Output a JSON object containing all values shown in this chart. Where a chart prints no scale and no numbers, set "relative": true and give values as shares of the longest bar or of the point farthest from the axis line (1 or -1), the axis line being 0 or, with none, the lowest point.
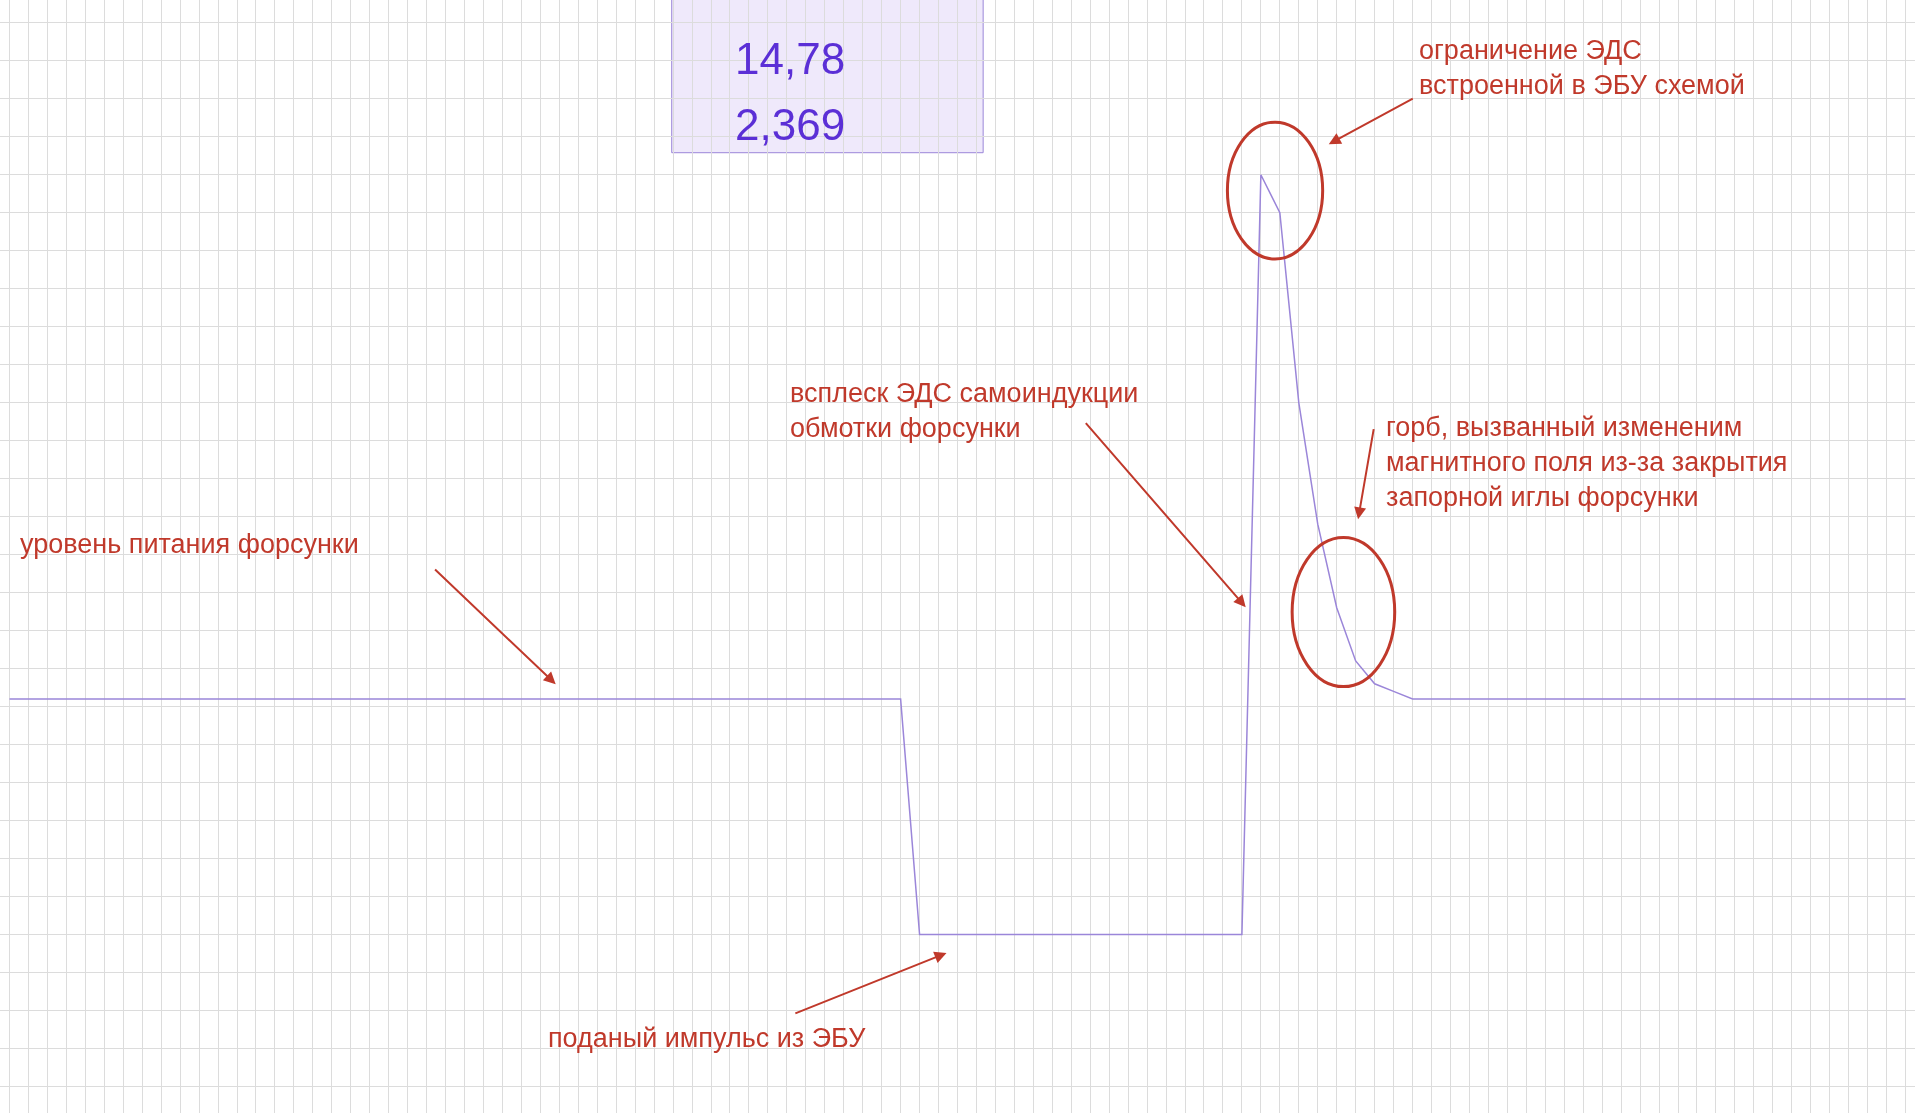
{
  "chart_data": {
    "type": "line",
    "relative": true,
    "grid": true,
    "legend": false,
    "marker": "none",
    "line_style": "solid",
    "categories": [
      null,
      null,
      null,
      null,
      null,
      null,
      null,
      null,
      null,
      null,
      null,
      null,
      null,
      null,
      null,
      null,
      null,
      null,
      null,
      null,
      null,
      null,
      null,
      null,
      null,
      null,
      null,
      null,
      null,
      null,
      null,
      null,
      null,
      null,
      null,
      null,
      null,
      null,
      null,
      null,
      null,
      null,
      null,
      null,
      null,
      null,
      null,
      null,
      null,
      null,
      null,
      null,
      null,
      null,
      null,
      null,
      null,
      null,
      null,
      null,
      null,
      null,
      null,
      null,
      null,
      null,
      null,
      null,
      null,
      null,
      null,
      null,
      null,
      null,
      null,
      null,
      null,
      null,
      null,
      null,
      null,
      null,
      null,
      null,
      null,
      null,
      null,
      null,
      null,
      null,
      null,
      null,
      null,
      null,
      null,
      null,
      null,
      null,
      null,
      null,
      null
    ],
    "series": [
      {
        "color": "#9b86d9",
        "values": [
          0.31,
          0.31,
          0.31,
          0.31,
          0.31,
          0.31,
          0.31,
          0.31,
          0.31,
          0.31,
          0.31,
          0.31,
          0.31,
          0.31,
          0.31,
          0.31,
          0.31,
          0.31,
          0.31,
          0.31,
          0.31,
          0.31,
          0.31,
          0.31,
          0.31,
          0.31,
          0.31,
          0.31,
          0.31,
          0.31,
          0.31,
          0.31,
          0.31,
          0.31,
          0.31,
          0.31,
          0.31,
          0.31,
          0.31,
          0.31,
          0.31,
          0.31,
          0.31,
          0.31,
          0.31,
          0.31,
          0.31,
          0.31,
          0,
          0,
          0,
          0,
          0,
          0,
          0,
          0,
          0,
          0,
          0,
          0,
          0,
          0,
          0,
          0,
          0,
          0,
          1,
          0.95,
          0.7,
          0.54,
          0.43,
          0.36,
          0.33,
          0.32,
          0.31,
          0.31,
          0.31,
          0.31,
          0.31,
          0.31,
          0.31,
          0.31,
          0.31,
          0.31,
          0.31,
          0.31,
          0.31,
          0.31,
          0.31,
          0.31,
          0.31,
          0.31,
          0.31,
          0.31,
          0.31,
          0.31,
          0.31,
          0.31,
          0.31,
          0.31,
          0.31
        ]
      }
    ],
    "annotations": [
      "ограничение ЭДС\nвстроенной в ЭБУ схемой",
      "всплеск ЭДС самоиндукции\nобмотки форсунки",
      "горб, вызванный измененим\nмагнитного поля из-за закрытия\nзапорной иглы форсунки",
      "уровень питания форсунки",
      "поданый импульс из ЭБУ",
      "14,78",
      "2,369"
    ]
  }
}
